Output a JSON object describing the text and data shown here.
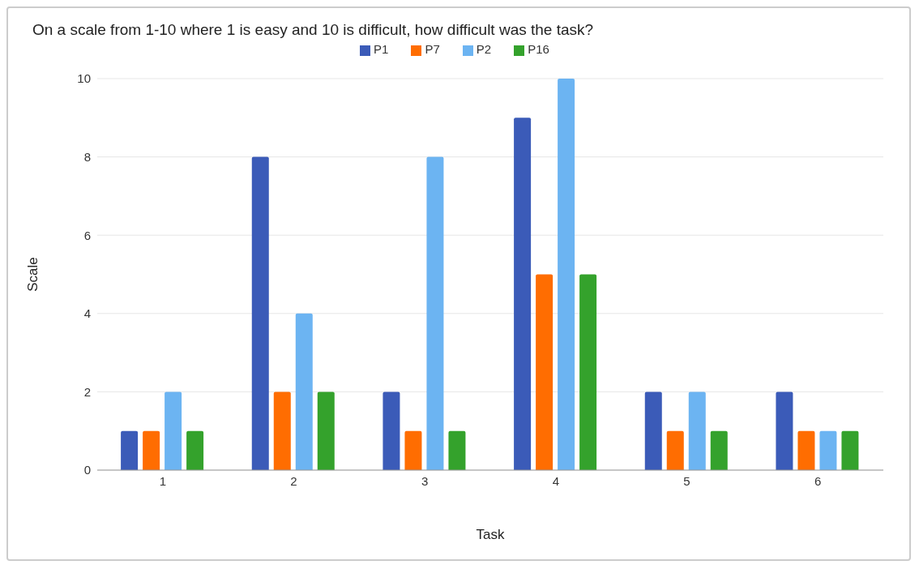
{
  "chart_data": {
    "type": "bar",
    "title": "On a scale from 1-10 where 1 is easy and 10 is difficult, how difficult was the task?",
    "xlabel": "Task",
    "ylabel": "Scale",
    "categories": [
      "1",
      "2",
      "3",
      "4",
      "5",
      "6"
    ],
    "series": [
      {
        "name": "P1",
        "color": "#3b5bb8",
        "values": [
          1,
          8,
          2,
          9,
          2,
          2
        ]
      },
      {
        "name": "P7",
        "color": "#ff6d01",
        "values": [
          1,
          2,
          1,
          5,
          1,
          1
        ]
      },
      {
        "name": "P2",
        "color": "#6cb4f2",
        "values": [
          2,
          4,
          8,
          10,
          2,
          1
        ]
      },
      {
        "name": "P16",
        "color": "#34a22c",
        "values": [
          1,
          2,
          1,
          5,
          1,
          1
        ]
      }
    ],
    "ylim": [
      0,
      10
    ],
    "yticks": [
      0,
      2,
      4,
      6,
      8,
      10
    ],
    "grid": "y",
    "legend": "top"
  }
}
